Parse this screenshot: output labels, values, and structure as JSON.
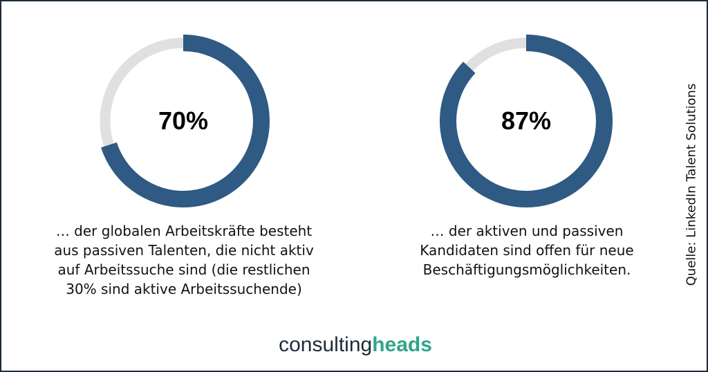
{
  "chart_data": [
    {
      "type": "pie",
      "variant": "donut",
      "label": "70%",
      "values": [
        70,
        30
      ],
      "colors": [
        "#2e5a83",
        "#e0e0e0"
      ],
      "caption_lines": [
        "… der globalen Arbeitskräfte besteht",
        "aus passiven Talenten, die nicht aktiv",
        "auf Arbeitssuche sind (die restlichen",
        "30% sind aktive Arbeitssuchende)"
      ]
    },
    {
      "type": "pie",
      "variant": "donut",
      "label": "87%",
      "values": [
        87,
        13
      ],
      "colors": [
        "#2e5a83",
        "#e0e0e0"
      ],
      "caption_lines": [
        "… der aktiven und passiven",
        "Kandidaten sind offen für neue",
        "Beschäftigungsmöglichkeiten."
      ]
    }
  ],
  "source": "Quelle: LinkedIn Talent Solutions",
  "logo": {
    "part1": "consulting",
    "part2": "heads"
  },
  "colors": {
    "accent": "#2e5a83",
    "track": "#e0e0e0",
    "logo_dark": "#1d2b3a",
    "logo_green": "#2fa58a"
  }
}
